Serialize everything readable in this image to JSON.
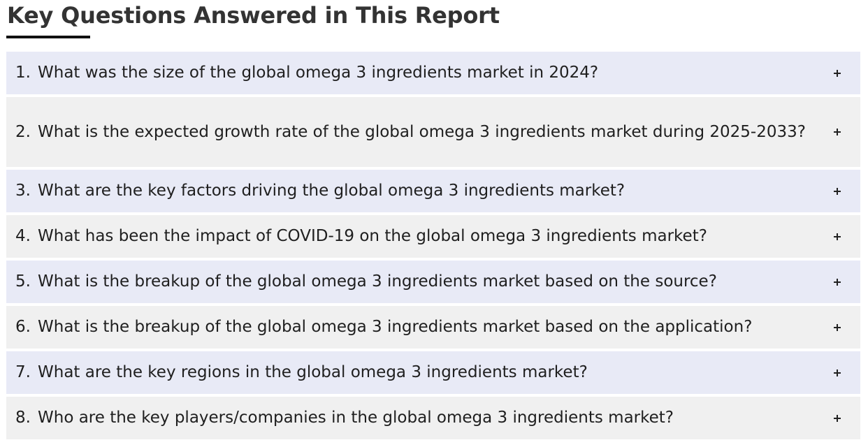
{
  "header": {
    "title": "Key Questions Answered in This Report"
  },
  "faq": {
    "items": [
      {
        "number": "1.",
        "question": "What was the size of the global omega 3 ingredients market in 2024?",
        "toggle_icon": "plus-icon"
      },
      {
        "number": "2.",
        "question": "What is the expected growth rate of the global omega 3 ingredients market during 2025-2033?",
        "toggle_icon": "plus-icon"
      },
      {
        "number": "3.",
        "question": "What are the key factors driving the global omega 3 ingredients market?",
        "toggle_icon": "plus-icon"
      },
      {
        "number": "4.",
        "question": "What has been the impact of COVID-19 on the global omega 3 ingredients market?",
        "toggle_icon": "plus-icon"
      },
      {
        "number": "5.",
        "question": "What is the breakup of the global omega 3 ingredients market based on the source?",
        "toggle_icon": "plus-icon"
      },
      {
        "number": "6.",
        "question": "What is the breakup of the global omega 3 ingredients market based on the application?",
        "toggle_icon": "plus-icon"
      },
      {
        "number": "7.",
        "question": "What are the key regions in the global omega 3 ingredients market?",
        "toggle_icon": "plus-icon"
      },
      {
        "number": "8.",
        "question": "Who are the key players/companies in the global omega 3 ingredients market?",
        "toggle_icon": "plus-icon"
      }
    ]
  },
  "colors": {
    "row_tint_a": "#e8eaf6",
    "row_tint_b": "#f0f0f0",
    "underline": "#111111"
  }
}
